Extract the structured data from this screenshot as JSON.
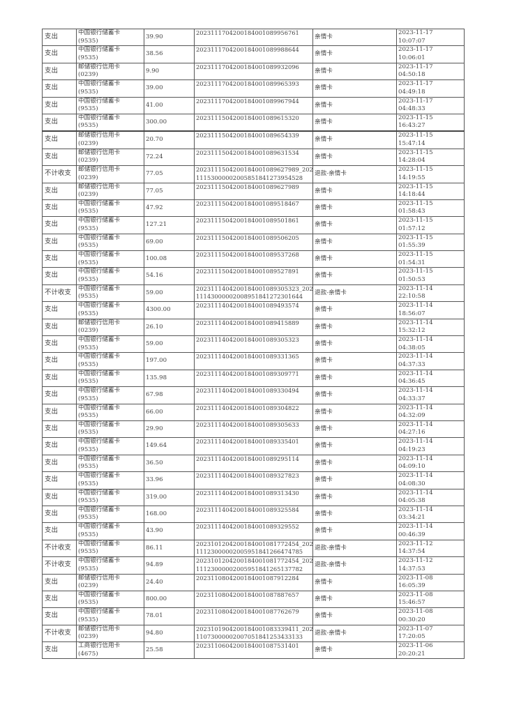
{
  "rows": [
    {
      "type": "支出",
      "account": "中国银行储蓄卡",
      "card": "(9535)",
      "amount": "39.90",
      "id1": "2023111704200184001089956761",
      "id2": "",
      "desc": "亲情卡",
      "date": "2023-11-17",
      "time": "10:07:07"
    },
    {
      "type": "支出",
      "account": "中国银行储蓄卡",
      "card": "(9535)",
      "amount": "38.56",
      "id1": "2023111704200184001089988644",
      "id2": "",
      "desc": "亲情卡",
      "date": "2023-11-17",
      "time": "10:06:01"
    },
    {
      "type": "支出",
      "account": "邮储银行信用卡",
      "card": "(0239)",
      "amount": "9.90",
      "id1": "2023111704200184001089932096",
      "id2": "",
      "desc": "亲情卡",
      "date": "2023-11-17",
      "time": "04:50:18"
    },
    {
      "type": "支出",
      "account": "中国银行储蓄卡",
      "card": "(9535)",
      "amount": "39.00",
      "id1": "2023111704200184001089965393",
      "id2": "",
      "desc": "亲情卡",
      "date": "2023-11-17",
      "time": "04:49:18"
    },
    {
      "type": "支出",
      "account": "中国银行储蓄卡",
      "card": "(9535)",
      "amount": "41.00",
      "id1": "2023111704200184001089967944",
      "id2": "",
      "desc": "亲情卡",
      "date": "2023-11-17",
      "time": "04:48:33"
    },
    {
      "type": "支出",
      "account": "中国银行储蓄卡",
      "card": "(9535)",
      "amount": "300.00",
      "id1": "2023111504200184001089615320",
      "id2": "",
      "desc": "亲情卡",
      "date": "2023-11-15",
      "time": "16:43:27"
    },
    {
      "type": "支出",
      "account": "邮储银行信用卡",
      "card": "(0239)",
      "amount": "20.70",
      "id1": "2023111504200184001089654339",
      "id2": "",
      "desc": "亲情卡",
      "date": "2023-11-15",
      "time": "15:47:14"
    },
    {
      "type": "支出",
      "account": "邮储银行信用卡",
      "card": "(0239)",
      "amount": "72.24",
      "id1": "2023111504200184001089631534",
      "id2": "",
      "desc": "亲情卡",
      "date": "2023-11-15",
      "time": "14:28:04"
    },
    {
      "type": "不计收支",
      "account": "邮储银行信用卡",
      "card": "(0239)",
      "amount": "77.05",
      "id1": "2023111504200184001089627989_2023",
      "id2": "111530000020058518412739545​28",
      "desc": "退款-亲情卡",
      "date": "2023-11-15",
      "time": "14:19:55"
    },
    {
      "type": "支出",
      "account": "邮储银行信用卡",
      "card": "(0239)",
      "amount": "77.05",
      "id1": "2023111504200184001089627989",
      "id2": "",
      "desc": "亲情卡",
      "date": "2023-11-15",
      "time": "14:18:44"
    },
    {
      "type": "支出",
      "account": "中国银行储蓄卡",
      "card": "(9535)",
      "amount": "47.92",
      "id1": "2023111504200184001089518467",
      "id2": "",
      "desc": "亲情卡",
      "date": "2023-11-15",
      "time": "01:58:43"
    },
    {
      "type": "支出",
      "account": "中国银行储蓄卡",
      "card": "(9535)",
      "amount": "127.21",
      "id1": "2023111504200184001089501861",
      "id2": "",
      "desc": "亲情卡",
      "date": "2023-11-15",
      "time": "01:57:12"
    },
    {
      "type": "支出",
      "account": "中国银行储蓄卡",
      "card": "(9535)",
      "amount": "69.00",
      "id1": "2023111504200184001089506205",
      "id2": "",
      "desc": "亲情卡",
      "date": "2023-11-15",
      "time": "01:55:39"
    },
    {
      "type": "支出",
      "account": "中国银行储蓄卡",
      "card": "(9535)",
      "amount": "100.08",
      "id1": "2023111504200184001089537268",
      "id2": "",
      "desc": "亲情卡",
      "date": "2023-11-15",
      "time": "01:54:31"
    },
    {
      "type": "支出",
      "account": "中国银行储蓄卡",
      "card": "(9535)",
      "amount": "54.16",
      "id1": "2023111504200184001089527891",
      "id2": "",
      "desc": "亲情卡",
      "date": "2023-11-15",
      "time": "01:50:53"
    },
    {
      "type": "不计收支",
      "account": "中国银行储蓄卡",
      "card": "(9535)",
      "amount": "59.00",
      "id1": "2023111404200184001089305323_2023",
      "id2": "1114300000200895184127230164​4",
      "desc": "退款-亲情卡",
      "date": "2023-11-14",
      "time": "22:10:58"
    },
    {
      "type": "支出",
      "account": "中国银行储蓄卡",
      "card": "(9535)",
      "amount": "4300.00",
      "id1": "2023111404200184001089493574",
      "id2": "",
      "desc": "亲情卡",
      "date": "2023-11-14",
      "time": "18:56:07"
    },
    {
      "type": "支出",
      "account": "邮储银行信用卡",
      "card": "(0239)",
      "amount": "26.10",
      "id1": "2023111404200184001089415889",
      "id2": "",
      "desc": "亲情卡",
      "date": "2023-11-14",
      "time": "15:32:12"
    },
    {
      "type": "支出",
      "account": "中国银行储蓄卡",
      "card": "(9535)",
      "amount": "59.00",
      "id1": "2023111404200184001089305323",
      "id2": "",
      "desc": "亲情卡",
      "date": "2023-11-14",
      "time": "04:38:05"
    },
    {
      "type": "支出",
      "account": "中国银行储蓄卡",
      "card": "(9535)",
      "amount": "197.00",
      "id1": "2023111404200184001089331365",
      "id2": "",
      "desc": "亲情卡",
      "date": "2023-11-14",
      "time": "04:37:33"
    },
    {
      "type": "支出",
      "account": "中国银行储蓄卡",
      "card": "(9535)",
      "amount": "135.98",
      "id1": "2023111404200184001089309771",
      "id2": "",
      "desc": "亲情卡",
      "date": "2023-11-14",
      "time": "04:36:45"
    },
    {
      "type": "支出",
      "account": "中国银行储蓄卡",
      "card": "(9535)",
      "amount": "67.98",
      "id1": "2023111404200184001089330494",
      "id2": "",
      "desc": "亲情卡",
      "date": "2023-11-14",
      "time": "04:33:37"
    },
    {
      "type": "支出",
      "account": "中国银行储蓄卡",
      "card": "(9535)",
      "amount": "66.00",
      "id1": "2023111404200184001089304822",
      "id2": "",
      "desc": "亲情卡",
      "date": "2023-11-14",
      "time": "04:32:09"
    },
    {
      "type": "支出",
      "account": "中国银行储蓄卡",
      "card": "(9535)",
      "amount": "29.90",
      "id1": "2023111404200184001089305633",
      "id2": "",
      "desc": "亲情卡",
      "date": "2023-11-14",
      "time": "04:27:16"
    },
    {
      "type": "支出",
      "account": "中国银行储蓄卡",
      "card": "(9535)",
      "amount": "149.64",
      "id1": "2023111404200184001089335401",
      "id2": "",
      "desc": "亲情卡",
      "date": "2023-11-14",
      "time": "04:19:23"
    },
    {
      "type": "支出",
      "account": "中国银行储蓄卡",
      "card": "(9535)",
      "amount": "36.50",
      "id1": "2023111404200184001089295114",
      "id2": "",
      "desc": "亲情卡",
      "date": "2023-11-14",
      "time": "04:09:10"
    },
    {
      "type": "支出",
      "account": "中国银行储蓄卡",
      "card": "(9535)",
      "amount": "33.96",
      "id1": "2023111404200184001089327823",
      "id2": "",
      "desc": "亲情卡",
      "date": "2023-11-14",
      "time": "04:08:30"
    },
    {
      "type": "支出",
      "account": "中国银行储蓄卡",
      "card": "(9535)",
      "amount": "319.00",
      "id1": "2023111404200184001089313430",
      "id2": "",
      "desc": "亲情卡",
      "date": "2023-11-14",
      "time": "04:05:38"
    },
    {
      "type": "支出",
      "account": "中国银行储蓄卡",
      "card": "(9535)",
      "amount": "168.00",
      "id1": "2023111404200184001089325584",
      "id2": "",
      "desc": "亲情卡",
      "date": "2023-11-14",
      "time": "03:34:21"
    },
    {
      "type": "支出",
      "account": "中国银行储蓄卡",
      "card": "(9535)",
      "amount": "43.90",
      "id1": "2023111404200184001089329552",
      "id2": "",
      "desc": "亲情卡",
      "date": "2023-11-14",
      "time": "00:46:39"
    },
    {
      "type": "不计收支",
      "account": "中国银行储蓄卡",
      "card": "(9535)",
      "amount": "86.11",
      "id1": "2023101204200184001081772454_2023",
      "id2": "1112300000200595184126647478​5",
      "desc": "退款-亲情卡",
      "date": "2023-11-12",
      "time": "14:37:54"
    },
    {
      "type": "不计收支",
      "account": "中国银行储蓄卡",
      "card": "(9535)",
      "amount": "94.89",
      "id1": "2023101204200184001081772454_2023",
      "id2": "1112300000200595184126513778​2",
      "desc": "退款-亲情卡",
      "date": "2023-11-12",
      "time": "14:37:53"
    },
    {
      "type": "支出",
      "account": "邮储银行信用卡",
      "card": "(0239)",
      "amount": "24.40",
      "id1": "2023110804200184001087912284",
      "id2": "",
      "desc": "亲情卡",
      "date": "2023-11-08",
      "time": "16:05:39"
    },
    {
      "type": "支出",
      "account": "中国银行储蓄卡",
      "card": "(9535)",
      "amount": "800.00",
      "id1": "2023110804200184001087887657",
      "id2": "",
      "desc": "亲情卡",
      "date": "2023-11-08",
      "time": "15:46:57"
    },
    {
      "type": "支出",
      "account": "中国银行储蓄卡",
      "card": "(9535)",
      "amount": "78.01",
      "id1": "2023110804200184001087762679",
      "id2": "",
      "desc": "亲情卡",
      "date": "2023-11-08",
      "time": "00:30:20"
    },
    {
      "type": "不计收支",
      "account": "邮储银行信用卡",
      "card": "(0239)",
      "amount": "94.80",
      "id1": "2023101904200184001083339411_2023",
      "id2": "1107300000200705184125343313​3",
      "desc": "退款-亲情卡",
      "date": "2023-11-07",
      "time": "17:20:05"
    },
    {
      "type": "支出",
      "account": "工商银行信用卡",
      "card": "(4675)",
      "amount": "25.58",
      "id1": "2023110604200184001087531401",
      "id2": "",
      "desc": "亲情卡",
      "date": "2023-11-06",
      "time": "20:20:21"
    }
  ]
}
